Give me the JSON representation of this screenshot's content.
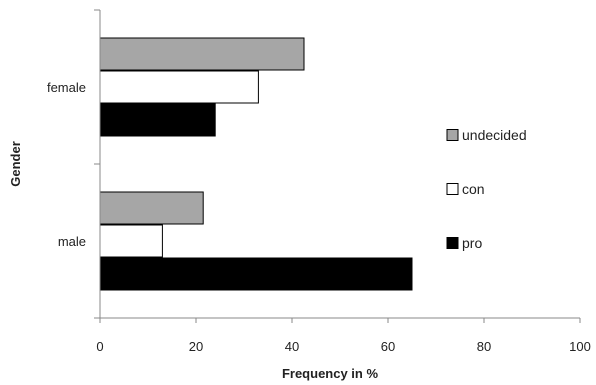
{
  "chart_data": {
    "type": "bar",
    "orientation": "horizontal",
    "categories": [
      "female",
      "male"
    ],
    "series": [
      {
        "name": "undecided",
        "values": [
          42.5,
          21.5
        ],
        "color": "#a6a6a6"
      },
      {
        "name": "con",
        "values": [
          33.0,
          13.0
        ],
        "color": "#ffffff"
      },
      {
        "name": "pro",
        "values": [
          24.0,
          65.0
        ],
        "color": "#000000"
      }
    ],
    "xlabel": "Frequency in %",
    "ylabel": "Gender",
    "xlim": [
      0,
      100
    ],
    "xticks": [
      0,
      20,
      40,
      60,
      80,
      100
    ],
    "grid": false,
    "legend_position": "right"
  }
}
